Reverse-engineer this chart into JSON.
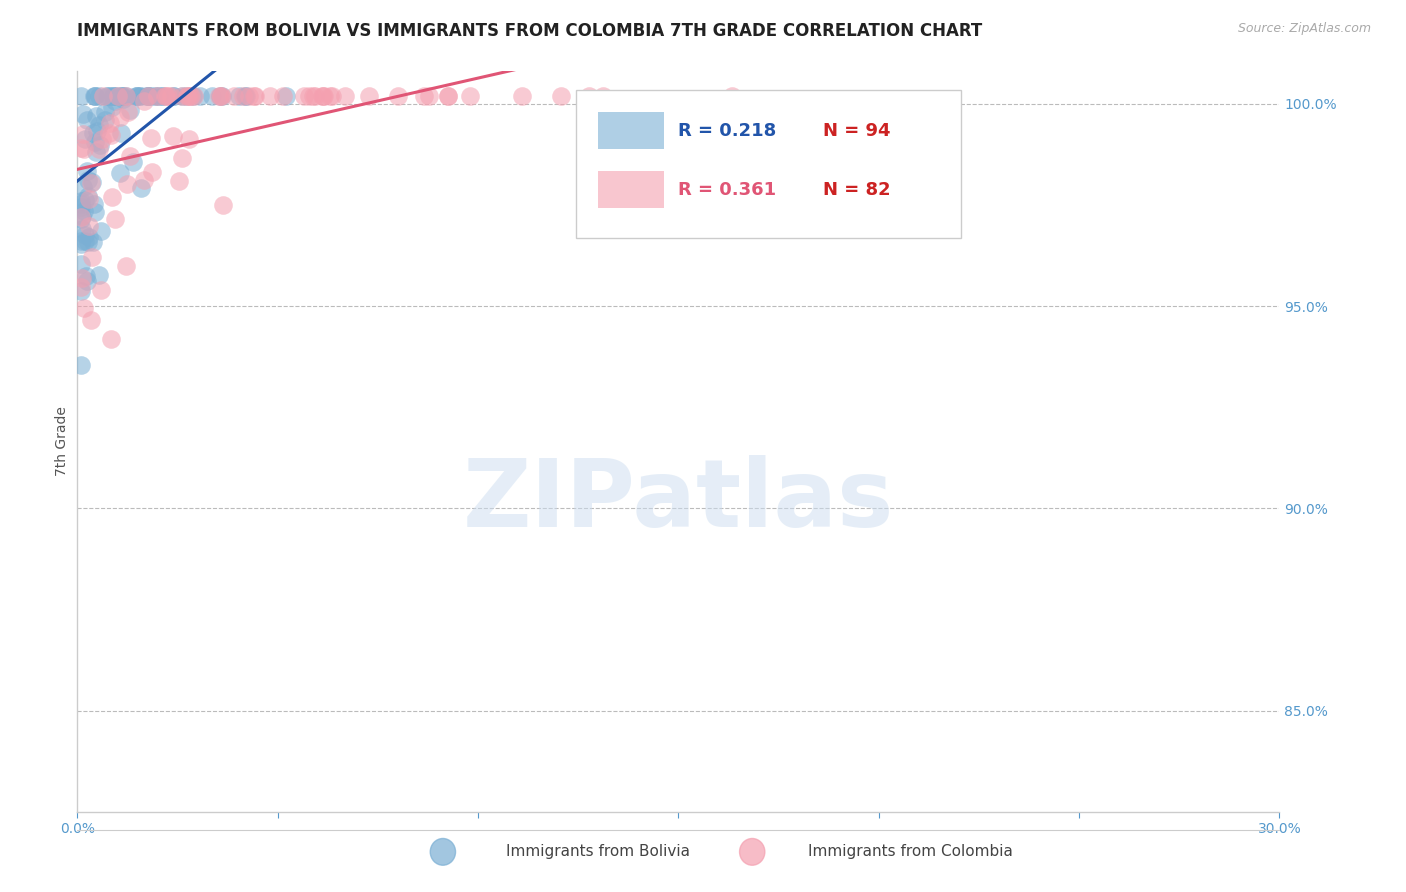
{
  "title": "IMMIGRANTS FROM BOLIVIA VS IMMIGRANTS FROM COLOMBIA 7TH GRADE CORRELATION CHART",
  "source": "Source: ZipAtlas.com",
  "ylabel": "7th Grade",
  "xlim": [
    0.0,
    0.3
  ],
  "ylim": [
    0.825,
    1.008
  ],
  "yticks": [
    0.85,
    0.9,
    0.95,
    1.0
  ],
  "ytick_labels": [
    "85.0%",
    "90.0%",
    "95.0%",
    "100.0%"
  ],
  "xticks": [
    0.0,
    0.05,
    0.1,
    0.15,
    0.2,
    0.25,
    0.3
  ],
  "xtick_labels": [
    "0.0%",
    "",
    "",
    "",
    "",
    "",
    "30.0%"
  ],
  "legend_bolivia": "Immigrants from Bolivia",
  "legend_colombia": "Immigrants from Colombia",
  "R_bolivia": 0.218,
  "N_bolivia": 94,
  "R_colombia": 0.361,
  "N_colombia": 82,
  "color_bolivia": "#7bafd4",
  "color_colombia": "#f4a0b0",
  "line_color_bolivia": "#2255aa",
  "line_color_colombia": "#e05575",
  "background_color": "#ffffff",
  "grid_color": "#bbbbbb",
  "axis_color": "#cccccc",
  "tick_color": "#5599cc",
  "title_fontsize": 12,
  "label_fontsize": 10,
  "tick_fontsize": 10,
  "watermark_text": "ZIPatlas",
  "watermark_color": "#ccddf0",
  "watermark_alpha": 0.5
}
